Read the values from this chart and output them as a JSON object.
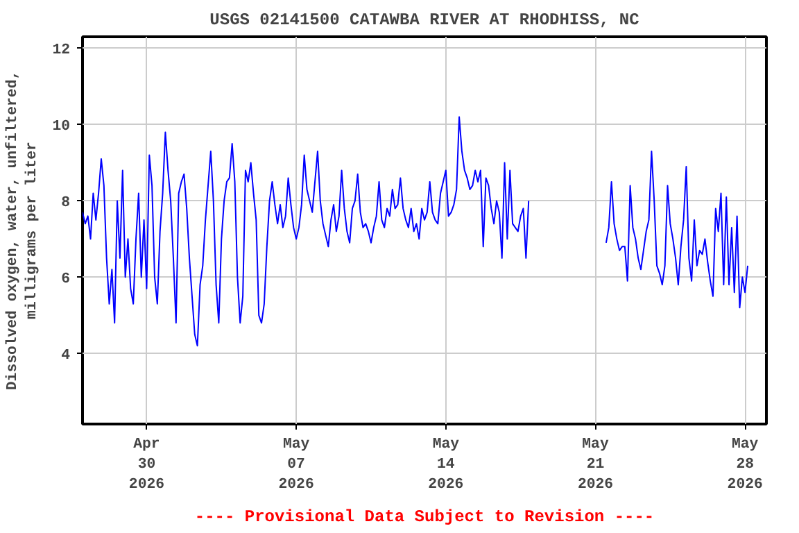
{
  "chart_data": {
    "type": "line",
    "title": "USGS 02141500 CATAWBA RIVER AT RHODHISS, NC",
    "ylabel": "Dissolved oxygen, water, unfiltered,\nmilligrams per liter",
    "annotations": [
      "---- Provisional Data Subject to Revision ----"
    ],
    "xlim": [
      "2026-04-27T00:00",
      "2026-05-29T00:00"
    ],
    "xticks": [
      {
        "value": "2026-04-30",
        "label": "Apr\n30\n2026"
      },
      {
        "value": "2026-05-07",
        "label": "May\n07\n2026"
      },
      {
        "value": "2026-05-14",
        "label": "May\n14\n2026"
      },
      {
        "value": "2026-05-21",
        "label": "May\n21\n2026"
      },
      {
        "value": "2026-05-28",
        "label": "May\n28\n2026"
      }
    ],
    "ylim": [
      2.15,
      12.3
    ],
    "yticks": [
      4,
      6,
      8,
      10,
      12
    ],
    "grid": true,
    "x": [
      "2026-04-27T00:00",
      "2026-04-27T03:00",
      "2026-04-27T06:00",
      "2026-04-27T09:00",
      "2026-04-27T12:00",
      "2026-04-27T15:00",
      "2026-04-27T18:00",
      "2026-04-27T21:00",
      "2026-04-28T00:00",
      "2026-04-28T03:00",
      "2026-04-28T06:00",
      "2026-04-28T09:00",
      "2026-04-28T12:00",
      "2026-04-28T15:00",
      "2026-04-28T18:00",
      "2026-04-28T21:00",
      "2026-04-29T00:00",
      "2026-04-29T03:00",
      "2026-04-29T06:00",
      "2026-04-29T09:00",
      "2026-04-29T12:00",
      "2026-04-29T15:00",
      "2026-04-29T18:00",
      "2026-04-29T21:00",
      "2026-04-30T00:00",
      "2026-04-30T03:00",
      "2026-04-30T06:00",
      "2026-04-30T09:00",
      "2026-04-30T12:00",
      "2026-04-30T15:00",
      "2026-04-30T18:00",
      "2026-04-30T21:00",
      "2026-05-01T00:00",
      "2026-05-01T03:00",
      "2026-05-01T06:00",
      "2026-05-01T09:00",
      "2026-05-01T12:00",
      "2026-05-01T15:00",
      "2026-05-01T18:00",
      "2026-05-01T21:00",
      "2026-05-02T00:00",
      "2026-05-02T03:00",
      "2026-05-02T06:00",
      "2026-05-02T09:00",
      "2026-05-02T12:00",
      "2026-05-02T15:00",
      "2026-05-02T18:00",
      "2026-05-02T21:00",
      "2026-05-03T00:00",
      "2026-05-03T03:00",
      "2026-05-03T06:00",
      "2026-05-03T09:00",
      "2026-05-03T12:00",
      "2026-05-03T15:00",
      "2026-05-03T18:00",
      "2026-05-03T21:00",
      "2026-05-04T00:00",
      "2026-05-04T03:00",
      "2026-05-04T06:00",
      "2026-05-04T09:00",
      "2026-05-04T12:00",
      "2026-05-04T15:00",
      "2026-05-04T18:00",
      "2026-05-04T21:00",
      "2026-05-05T00:00",
      "2026-05-05T03:00",
      "2026-05-05T06:00",
      "2026-05-05T09:00",
      "2026-05-05T12:00",
      "2026-05-05T15:00",
      "2026-05-05T18:00",
      "2026-05-05T21:00",
      "2026-05-06T00:00",
      "2026-05-06T03:00",
      "2026-05-06T06:00",
      "2026-05-06T09:00",
      "2026-05-06T12:00",
      "2026-05-06T15:00",
      "2026-05-06T18:00",
      "2026-05-06T21:00",
      "2026-05-07T00:00",
      "2026-05-07T03:00",
      "2026-05-07T06:00",
      "2026-05-07T09:00",
      "2026-05-07T12:00",
      "2026-05-07T15:00",
      "2026-05-07T18:00",
      "2026-05-07T21:00",
      "2026-05-08T00:00",
      "2026-05-08T03:00",
      "2026-05-08T06:00",
      "2026-05-08T09:00",
      "2026-05-08T12:00",
      "2026-05-08T15:00",
      "2026-05-08T18:00",
      "2026-05-08T21:00",
      "2026-05-09T00:00",
      "2026-05-09T03:00",
      "2026-05-09T06:00",
      "2026-05-09T09:00",
      "2026-05-09T12:00",
      "2026-05-09T15:00",
      "2026-05-09T18:00",
      "2026-05-09T21:00",
      "2026-05-10T00:00",
      "2026-05-10T03:00",
      "2026-05-10T06:00",
      "2026-05-10T09:00",
      "2026-05-10T12:00",
      "2026-05-10T15:00",
      "2026-05-10T18:00",
      "2026-05-10T21:00",
      "2026-05-11T00:00",
      "2026-05-11T03:00",
      "2026-05-11T06:00",
      "2026-05-11T09:00",
      "2026-05-11T12:00",
      "2026-05-11T15:00",
      "2026-05-11T18:00",
      "2026-05-11T21:00",
      "2026-05-12T00:00",
      "2026-05-12T03:00",
      "2026-05-12T06:00",
      "2026-05-12T09:00",
      "2026-05-12T12:00",
      "2026-05-12T15:00",
      "2026-05-12T18:00",
      "2026-05-12T21:00",
      "2026-05-13T00:00",
      "2026-05-13T03:00",
      "2026-05-13T06:00",
      "2026-05-13T09:00",
      "2026-05-13T12:00",
      "2026-05-13T15:00",
      "2026-05-13T18:00",
      "2026-05-13T21:00",
      "2026-05-14T00:00",
      "2026-05-14T03:00",
      "2026-05-14T06:00",
      "2026-05-14T09:00",
      "2026-05-14T12:00",
      "2026-05-14T15:00",
      "2026-05-14T18:00",
      "2026-05-14T21:00",
      "2026-05-15T00:00",
      "2026-05-15T03:00",
      "2026-05-15T06:00",
      "2026-05-15T09:00",
      "2026-05-15T12:00",
      "2026-05-15T15:00",
      "2026-05-15T18:00",
      "2026-05-15T21:00",
      "2026-05-16T00:00",
      "2026-05-16T03:00",
      "2026-05-16T06:00",
      "2026-05-16T09:00",
      "2026-05-16T12:00",
      "2026-05-16T15:00",
      "2026-05-16T18:00",
      "2026-05-16T21:00",
      "2026-05-17T00:00",
      "2026-05-17T03:00",
      "2026-05-17T06:00",
      "2026-05-17T09:00",
      "2026-05-17T12:00",
      "2026-05-17T15:00",
      "2026-05-17T18:00",
      "2026-05-17T21:00",
      "2026-05-19T12:00",
      "2026-05-21T12:00",
      "2026-05-21T15:00",
      "2026-05-21T18:00",
      "2026-05-21T21:00",
      "2026-05-22T00:00",
      "2026-05-22T03:00",
      "2026-05-22T06:00",
      "2026-05-22T09:00",
      "2026-05-22T12:00",
      "2026-05-22T15:00",
      "2026-05-22T18:00",
      "2026-05-22T21:00",
      "2026-05-23T00:00",
      "2026-05-23T03:00",
      "2026-05-23T06:00",
      "2026-05-23T09:00",
      "2026-05-23T12:00",
      "2026-05-23T15:00",
      "2026-05-23T18:00",
      "2026-05-23T21:00",
      "2026-05-24T00:00",
      "2026-05-24T03:00",
      "2026-05-24T06:00",
      "2026-05-24T09:00",
      "2026-05-24T12:00",
      "2026-05-24T15:00",
      "2026-05-24T18:00",
      "2026-05-24T21:00",
      "2026-05-25T00:00",
      "2026-05-25T03:00",
      "2026-05-25T06:00",
      "2026-05-25T09:00",
      "2026-05-25T12:00",
      "2026-05-25T15:00",
      "2026-05-25T18:00",
      "2026-05-25T21:00",
      "2026-05-26T00:00",
      "2026-05-26T03:00",
      "2026-05-26T06:00",
      "2026-05-26T09:00",
      "2026-05-26T12:00",
      "2026-05-26T15:00",
      "2026-05-26T18:00",
      "2026-05-26T21:00",
      "2026-05-27T00:00",
      "2026-05-27T03:00",
      "2026-05-27T06:00",
      "2026-05-27T09:00",
      "2026-05-27T12:00",
      "2026-05-27T15:00",
      "2026-05-27T18:00",
      "2026-05-27T21:00",
      "2026-05-28T00:00",
      "2026-05-28T03:00"
    ],
    "series": [
      {
        "color": "#0000ff",
        "values": [
          7.7,
          7.4,
          7.6,
          7.0,
          8.2,
          7.5,
          8.2,
          9.1,
          8.4,
          6.5,
          5.3,
          6.2,
          4.8,
          8.0,
          6.5,
          8.8,
          6.0,
          7.0,
          5.7,
          5.3,
          7.0,
          8.2,
          6.0,
          7.5,
          5.7,
          9.2,
          8.4,
          6.0,
          5.3,
          7.2,
          8.2,
          9.8,
          8.8,
          8.0,
          6.5,
          4.8,
          8.2,
          8.5,
          8.7,
          7.8,
          6.5,
          5.5,
          4.5,
          4.2,
          5.8,
          6.3,
          7.5,
          8.4,
          9.3,
          8.0,
          5.8,
          4.8,
          7.0,
          8.0,
          8.5,
          8.6,
          9.5,
          8.5,
          6.0,
          4.8,
          5.5,
          8.8,
          8.5,
          9.0,
          8.2,
          7.5,
          5.0,
          4.8,
          5.3,
          6.8,
          8.0,
          8.5,
          7.9,
          7.4,
          7.9,
          7.3,
          7.6,
          8.6,
          7.9,
          7.3,
          7.0,
          7.3,
          7.9,
          9.2,
          8.3,
          8.0,
          7.7,
          8.5,
          9.3,
          8.0,
          7.4,
          7.1,
          6.8,
          7.5,
          7.9,
          7.2,
          7.6,
          8.8,
          7.8,
          7.2,
          6.9,
          7.8,
          8.0,
          8.7,
          7.7,
          7.3,
          7.4,
          7.2,
          6.9,
          7.3,
          7.6,
          8.5,
          7.5,
          7.3,
          7.8,
          7.6,
          8.3,
          7.8,
          7.9,
          8.6,
          7.8,
          7.5,
          7.3,
          7.8,
          7.2,
          7.4,
          7.0,
          7.8,
          7.5,
          7.7,
          8.5,
          7.7,
          7.5,
          7.4,
          8.2,
          8.5,
          8.8,
          7.6,
          7.7,
          7.9,
          8.3,
          10.2,
          9.3,
          8.8,
          8.6,
          8.3,
          8.4,
          8.8,
          8.5,
          8.8,
          6.8,
          8.6,
          8.4,
          7.8,
          7.4,
          8.0,
          7.7,
          6.5,
          9.0,
          7.0,
          8.8,
          7.4,
          7.3,
          7.2,
          7.6,
          7.8,
          6.5,
          8.0,
          null,
          6.9,
          7.3,
          8.5,
          7.4,
          7.0,
          6.7,
          6.8,
          6.8,
          5.9,
          8.4,
          7.3,
          7.0,
          6.5,
          6.2,
          6.7,
          7.2,
          7.5,
          9.3,
          8.0,
          6.3,
          6.1,
          5.8,
          6.3,
          8.4,
          7.4,
          7.0,
          6.5,
          5.8,
          6.8,
          7.5,
          8.9,
          6.5,
          5.9,
          7.5,
          6.3,
          6.7,
          6.6,
          7.0,
          6.4,
          5.9,
          5.5,
          7.8,
          7.2,
          8.2,
          5.8,
          8.1,
          5.8,
          7.3,
          5.6,
          7.6,
          5.2,
          6.0,
          5.6,
          6.3
        ]
      }
    ]
  }
}
